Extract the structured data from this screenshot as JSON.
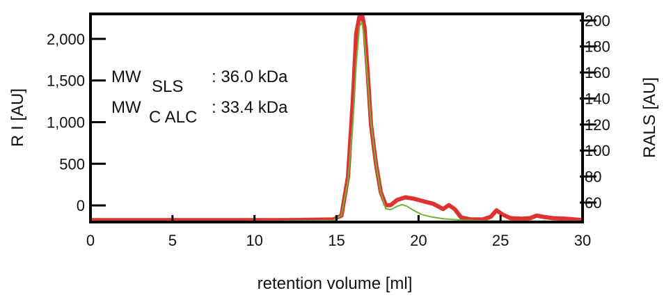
{
  "chart_data": {
    "type": "line",
    "xlabel": "retention volume [ml]",
    "ylabel_left": "R I [AU]",
    "ylabel_right": "RALS [AU]",
    "xlim": [
      0,
      30
    ],
    "ylim_left": [
      -200,
      2300
    ],
    "ylim_right": [
      45,
      205
    ],
    "x_ticks": [
      0,
      5,
      10,
      15,
      20,
      25,
      30
    ],
    "y_left_ticks": [
      0,
      500,
      1000,
      1500,
      2000
    ],
    "y_left_tick_labels": [
      "0",
      "500",
      "1,000",
      "1,500",
      "2,000"
    ],
    "y_right_ticks": [
      60,
      80,
      100,
      120,
      140,
      160,
      180,
      200
    ],
    "grid": false,
    "annotations": [
      {
        "prefix": "MW",
        "subscript": "SLS",
        "value": ": 36.0 kDa"
      },
      {
        "prefix": "MW",
        "subscript": "C ALC",
        "value": ": 33.4 kDa"
      }
    ],
    "series": [
      {
        "axis": "left",
        "color": "#6ab43a",
        "x": [
          0,
          5,
          10,
          14.8,
          15.3,
          15.7,
          16.0,
          16.2,
          16.4,
          16.55,
          16.7,
          16.9,
          17.1,
          17.4,
          17.7,
          18.0,
          18.3,
          18.7,
          19.0,
          19.3,
          19.7,
          20.2,
          20.8,
          21.5,
          22.5,
          24,
          26,
          28,
          30
        ],
        "values": [
          -190,
          -190,
          -190,
          -180,
          -120,
          300,
          1000,
          1700,
          2150,
          2200,
          2000,
          1500,
          1000,
          500,
          150,
          -40,
          -50,
          -10,
          10,
          -10,
          -60,
          -110,
          -140,
          -160,
          -175,
          -185,
          -188,
          -190,
          -190
        ]
      },
      {
        "axis": "right",
        "color": "#e03030",
        "x": [
          0,
          5,
          8.5,
          9.4,
          10.5,
          10.8,
          12,
          14.8,
          15.3,
          15.7,
          16.0,
          16.2,
          16.4,
          16.55,
          16.7,
          16.9,
          17.1,
          17.4,
          17.7,
          18.0,
          18.3,
          18.7,
          19.2,
          19.7,
          20.3,
          20.9,
          21.5,
          21.85,
          22.2,
          22.6,
          23.2,
          23.9,
          24.4,
          24.75,
          25.1,
          25.6,
          26.3,
          26.8,
          27.2,
          27.6,
          28.2,
          29,
          30
        ],
        "values": [
          46.5,
          46.5,
          46.5,
          46.5,
          46.5,
          46.5,
          46.5,
          47,
          50,
          80,
          140,
          190,
          203,
          205,
          195,
          160,
          120,
          90,
          68,
          58,
          58,
          62,
          64,
          63,
          61,
          59,
          55,
          58,
          55,
          48.5,
          47,
          47,
          49,
          54,
          51,
          48,
          47.5,
          48,
          50,
          49,
          48,
          47.5,
          46.5
        ]
      }
    ]
  }
}
